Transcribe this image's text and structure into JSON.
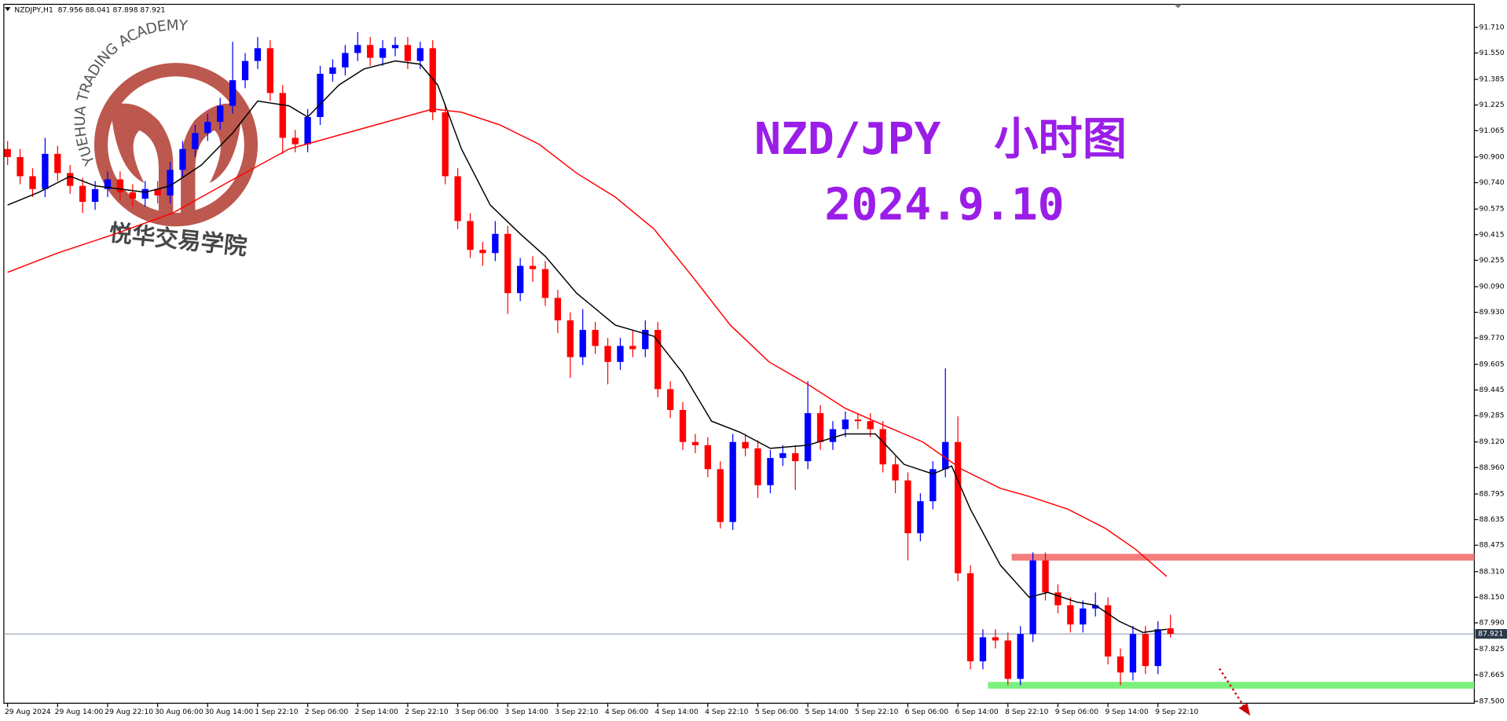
{
  "chart_data": {
    "type": "candlestick",
    "header": "NZDJPY,H1  87.956 88.041 87.898 87.921",
    "title": "NZD/JPY  小时图",
    "subtitle": "2024.9.10",
    "watermark": {
      "text": "YUEHUA TRADING ACADEMY",
      "chinese": "悦华交易学院"
    },
    "bull_color": "#0000ff",
    "bear_color": "#ff0000",
    "open": [
      90.95,
      90.9,
      90.78,
      90.7,
      90.92,
      90.8,
      90.72,
      90.62,
      90.7,
      90.76,
      90.68,
      90.64,
      90.7,
      90.66,
      90.82,
      90.95,
      91.05,
      91.12,
      91.22,
      91.38,
      91.5,
      91.58,
      91.3,
      91.02,
      90.98,
      91.15,
      91.42,
      91.46,
      91.55,
      91.6,
      91.52,
      91.58,
      91.6,
      91.5,
      91.58,
      91.18,
      90.78,
      90.5,
      90.32,
      90.3,
      90.42,
      90.05,
      90.22,
      90.2,
      90.02,
      89.88,
      89.65,
      89.82,
      89.72,
      89.62,
      89.72,
      89.7,
      89.82,
      89.45,
      89.32,
      89.12,
      89.1,
      88.95,
      88.62,
      89.12,
      89.08,
      88.85,
      89.02,
      89.05,
      89.0,
      89.3,
      89.12,
      89.2,
      89.26,
      89.25,
      89.2,
      88.98,
      88.88,
      88.55,
      88.75,
      88.95,
      89.12,
      88.3,
      87.75,
      87.9,
      87.88,
      87.64,
      87.92,
      88.38,
      88.18,
      88.1,
      87.98,
      88.08,
      88.1,
      87.78,
      87.68,
      87.92,
      87.72,
      87.956
    ],
    "high": [
      91.0,
      90.95,
      90.83,
      91.02,
      90.97,
      90.85,
      90.77,
      90.75,
      90.81,
      90.81,
      90.73,
      90.75,
      90.75,
      90.87,
      91.0,
      91.1,
      91.17,
      91.27,
      91.62,
      91.55,
      91.65,
      91.63,
      91.35,
      91.07,
      91.2,
      91.47,
      91.51,
      91.6,
      91.68,
      91.65,
      91.63,
      91.65,
      91.65,
      91.62,
      91.63,
      91.23,
      90.83,
      90.55,
      90.37,
      90.5,
      90.47,
      90.27,
      90.28,
      90.25,
      90.07,
      89.93,
      89.95,
      89.87,
      89.77,
      89.77,
      89.82,
      89.88,
      89.87,
      89.5,
      89.37,
      89.17,
      89.15,
      89.0,
      89.17,
      89.17,
      89.13,
      89.07,
      89.1,
      89.1,
      89.5,
      89.35,
      89.25,
      89.31,
      89.3,
      89.3,
      89.25,
      89.03,
      88.93,
      88.8,
      89.0,
      89.58,
      89.28,
      88.35,
      87.95,
      87.95,
      87.93,
      87.97,
      88.43,
      88.43,
      88.23,
      88.15,
      88.13,
      88.18,
      88.15,
      87.83,
      87.97,
      87.97,
      88.0,
      88.041
    ],
    "low": [
      90.85,
      90.73,
      90.65,
      90.65,
      90.75,
      90.67,
      90.55,
      90.57,
      90.65,
      90.63,
      90.59,
      90.59,
      90.61,
      90.61,
      90.77,
      90.9,
      91.0,
      91.07,
      91.17,
      91.33,
      91.45,
      91.25,
      90.92,
      90.93,
      90.93,
      91.1,
      91.37,
      91.41,
      91.5,
      91.47,
      91.47,
      91.53,
      91.45,
      91.45,
      91.13,
      90.73,
      90.45,
      90.27,
      90.22,
      90.25,
      89.92,
      90.0,
      90.12,
      89.97,
      89.8,
      89.52,
      89.6,
      89.67,
      89.48,
      89.57,
      89.65,
      89.65,
      89.4,
      89.27,
      89.07,
      89.05,
      88.9,
      88.58,
      88.57,
      89.03,
      88.77,
      88.8,
      88.97,
      88.82,
      88.95,
      89.07,
      89.07,
      89.15,
      89.2,
      89.15,
      88.93,
      88.8,
      88.38,
      88.5,
      88.7,
      88.9,
      88.25,
      87.7,
      87.7,
      87.83,
      87.6,
      87.6,
      87.87,
      88.13,
      88.05,
      87.93,
      87.93,
      88.03,
      87.73,
      87.6,
      87.63,
      87.67,
      87.67,
      87.898
    ],
    "close": [
      90.9,
      90.78,
      90.7,
      90.92,
      90.8,
      90.72,
      90.62,
      90.7,
      90.76,
      90.68,
      90.64,
      90.7,
      90.66,
      90.82,
      90.95,
      91.05,
      91.12,
      91.22,
      91.38,
      91.5,
      91.58,
      91.3,
      91.02,
      90.98,
      91.15,
      91.42,
      91.46,
      91.55,
      91.6,
      91.52,
      91.58,
      91.6,
      91.5,
      91.58,
      91.18,
      90.78,
      90.5,
      90.32,
      90.3,
      90.42,
      90.05,
      90.22,
      90.2,
      90.02,
      89.88,
      89.65,
      89.82,
      89.72,
      89.62,
      89.72,
      89.7,
      89.82,
      89.45,
      89.32,
      89.12,
      89.1,
      88.95,
      88.62,
      89.12,
      89.08,
      88.85,
      89.02,
      89.05,
      89.0,
      89.3,
      89.12,
      89.2,
      89.26,
      89.25,
      89.2,
      88.98,
      88.88,
      88.55,
      88.75,
      88.95,
      89.12,
      88.3,
      87.75,
      87.9,
      87.88,
      87.64,
      87.92,
      88.38,
      88.18,
      88.1,
      87.98,
      88.08,
      88.1,
      87.78,
      87.68,
      87.92,
      87.72,
      87.95,
      87.921
    ],
    "lines": [
      {
        "color": "#000000",
        "x": [
          0,
          2.5,
          5,
          7,
          11,
          13,
          15.5,
          18,
          20,
          22.5,
          24,
          26.5,
          28.5,
          31,
          33,
          34.4,
          36.3,
          38.6,
          41,
          43,
          45.5,
          48.6,
          51.7,
          54,
          56.3,
          58.6,
          61,
          64,
          67,
          69.4,
          71.7,
          74,
          75.5,
          77,
          79.4,
          81.7,
          83.2,
          85.5,
          87,
          88.9,
          90.8,
          92.7
        ],
        "values": [
          90.6,
          90.68,
          90.78,
          90.72,
          90.68,
          90.72,
          90.85,
          91.05,
          91.25,
          91.22,
          91.15,
          91.35,
          91.45,
          91.5,
          91.48,
          91.35,
          90.95,
          90.6,
          90.42,
          90.28,
          90.05,
          89.85,
          89.78,
          89.55,
          89.25,
          89.18,
          89.08,
          89.1,
          89.17,
          89.17,
          88.98,
          88.92,
          88.97,
          88.7,
          88.35,
          88.15,
          88.18,
          88.12,
          88.1,
          88.0,
          87.93,
          87.95
        ]
      },
      {
        "color": "#ff0000",
        "x": [
          0,
          4,
          8.6,
          13.2,
          17.8,
          22.5,
          27.1,
          31.7,
          34,
          36.3,
          39.4,
          42.5,
          45.5,
          48.6,
          51.7,
          54.8,
          57.8,
          60.9,
          64,
          67,
          70.2,
          73.2,
          76.3,
          79.4,
          81.7,
          84.8,
          87.8,
          90.2,
          92.7
        ],
        "values": [
          90.18,
          90.3,
          90.42,
          90.55,
          90.75,
          90.95,
          91.05,
          91.15,
          91.2,
          91.18,
          91.1,
          90.98,
          90.8,
          90.65,
          90.45,
          90.15,
          89.85,
          89.62,
          89.48,
          89.33,
          89.22,
          89.12,
          88.95,
          88.83,
          88.78,
          88.7,
          88.58,
          88.45,
          88.28
        ]
      }
    ],
    "levels": [
      {
        "value": 88.4,
        "from": 80.3,
        "color": "#f47c7c"
      },
      {
        "value": 87.6,
        "from": 78.4,
        "color": "#7cf07c"
      }
    ],
    "current_price": 87.921,
    "xlim": [
      -0.3,
      117.3
    ],
    "ylim": [
      87.488,
      91.854
    ],
    "xticks": [
      {
        "value": 0,
        "label": "29 Aug 2024"
      },
      {
        "value": 4,
        "label": "29 Aug 14:00"
      },
      {
        "value": 8,
        "label": "29 Aug 22:10"
      },
      {
        "value": 12,
        "label": "30 Aug 06:00"
      },
      {
        "value": 16,
        "label": "30 Aug 14:00"
      },
      {
        "value": 20,
        "label": "1 Sep 22:10"
      },
      {
        "value": 24,
        "label": "2 Sep 06:00"
      },
      {
        "value": 28,
        "label": "2 Sep 14:00"
      },
      {
        "value": 32,
        "label": "2 Sep 22:10"
      },
      {
        "value": 36,
        "label": "3 Sep 06:00"
      },
      {
        "value": 40,
        "label": "3 Sep 14:00"
      },
      {
        "value": 44,
        "label": "3 Sep 22:10"
      },
      {
        "value": 48,
        "label": "4 Sep 06:00"
      },
      {
        "value": 52,
        "label": "4 Sep 14:00"
      },
      {
        "value": 56,
        "label": "4 Sep 22:10"
      },
      {
        "value": 60,
        "label": "5 Sep 06:00"
      },
      {
        "value": 64,
        "label": "5 Sep 14:00"
      },
      {
        "value": 68,
        "label": "5 Sep 22:10"
      },
      {
        "value": 72,
        "label": "6 Sep 06:00"
      },
      {
        "value": 76,
        "label": "6 Sep 14:00"
      },
      {
        "value": 80,
        "label": "8 Sep 22:10"
      },
      {
        "value": 84,
        "label": "9 Sep 06:00"
      },
      {
        "value": 88,
        "label": "9 Sep 14:00"
      },
      {
        "value": 92,
        "label": "9 Sep 22:10"
      }
    ],
    "yticks": [
      {
        "value": 91.71,
        "label": "91.710"
      },
      {
        "value": 91.55,
        "label": "91.550"
      },
      {
        "value": 91.385,
        "label": "91.385"
      },
      {
        "value": 91.225,
        "label": "91.225"
      },
      {
        "value": 91.065,
        "label": "91.065"
      },
      {
        "value": 90.9,
        "label": "90.900"
      },
      {
        "value": 90.74,
        "label": "90.740"
      },
      {
        "value": 90.575,
        "label": "90.575"
      },
      {
        "value": 90.415,
        "label": "90.415"
      },
      {
        "value": 90.255,
        "label": "90.255"
      },
      {
        "value": 90.09,
        "label": "90.090"
      },
      {
        "value": 89.93,
        "label": "89.930"
      },
      {
        "value": 89.77,
        "label": "89.770"
      },
      {
        "value": 89.605,
        "label": "89.605"
      },
      {
        "value": 89.445,
        "label": "89.445"
      },
      {
        "value": 89.285,
        "label": "89.285"
      },
      {
        "value": 89.12,
        "label": "89.120"
      },
      {
        "value": 88.96,
        "label": "88.960"
      },
      {
        "value": 88.795,
        "label": "88.795"
      },
      {
        "value": 88.635,
        "label": "88.635"
      },
      {
        "value": 88.475,
        "label": "88.475"
      },
      {
        "value": 88.31,
        "label": "88.310"
      },
      {
        "value": 88.15,
        "label": "88.150"
      },
      {
        "value": 87.99,
        "label": "87.990"
      },
      {
        "value": 87.825,
        "label": "87.825"
      },
      {
        "value": 87.665,
        "label": "87.665"
      },
      {
        "value": 87.5,
        "label": "87.500"
      }
    ],
    "grid": false
  }
}
